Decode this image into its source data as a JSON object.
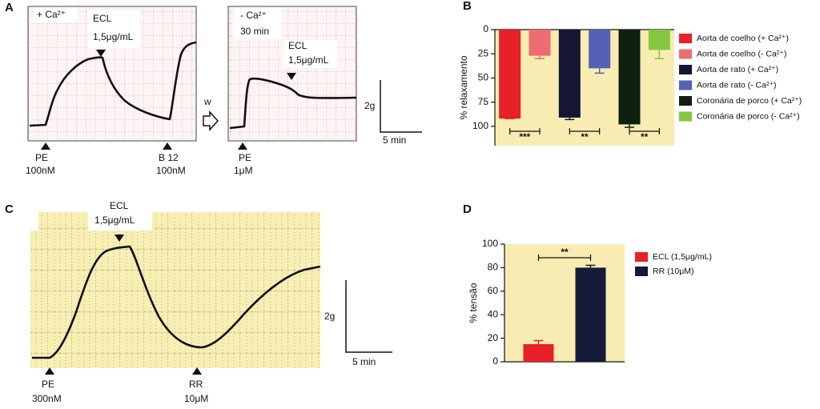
{
  "panels": {
    "A": {
      "label": "A",
      "left_condition": "+ Ca²⁺",
      "ecl": "ECL",
      "ecl_dose": "1,5μg/mL",
      "pe": "PE",
      "pe_dose": "100nM",
      "b12": "B 12",
      "b12_dose": "100nM",
      "wash": "w",
      "right_condition": "- Ca²⁺",
      "right_time": "30 min",
      "ecl2": "ECL",
      "ecl2_dose": "1,5μg/mL",
      "pe2": "PE",
      "pe2_dose": "1μM",
      "scale_y": "2g",
      "scale_x": "5 min"
    },
    "C": {
      "label": "C",
      "ecl": "ECL",
      "ecl_dose": "1,5μg/mL",
      "pe": "PE",
      "pe_dose": "300nM",
      "rr": "RR",
      "rr_dose": "10μM",
      "scale_y": "2g",
      "scale_x": "5 min"
    }
  },
  "chart_data": [
    {
      "type": "bar",
      "label": "B",
      "ylabel": "% relaxamento",
      "inverted": true,
      "ylim": [
        0,
        120
      ],
      "yticks": [
        0,
        25,
        50,
        75,
        100
      ],
      "background": "#f8ecb2",
      "legend": "right",
      "categories": [
        null
      ],
      "series": [
        {
          "name": "Aorta de coelho (+ Ca²⁺)",
          "color": "#e8202a",
          "values": [
            92
          ],
          "errors": [
            0
          ]
        },
        {
          "name": "Aorta de coelho (- Ca²⁺)",
          "color": "#ef6b73",
          "values": [
            27
          ],
          "errors": [
            3
          ]
        },
        {
          "name": "Aorta de rato (+ Ca²⁺)",
          "color": "#141633",
          "values": [
            91
          ],
          "errors": [
            2
          ]
        },
        {
          "name": "Aorta de rato (- Ca²⁺)",
          "color": "#5661b5",
          "values": [
            40
          ],
          "errors": [
            5
          ]
        },
        {
          "name": "Coronária de porco (+ Ca²⁺)",
          "color": "#0e1f10",
          "values": [
            98
          ],
          "errors": [
            3
          ]
        },
        {
          "name": "Coronária de porco (- Ca²⁺)",
          "color": "#86c540",
          "values": [
            21
          ],
          "errors": [
            9
          ]
        }
      ],
      "annotations": [
        "***",
        "**",
        "**"
      ]
    },
    {
      "type": "bar",
      "label": "D",
      "ylabel": "% tensão",
      "inverted": false,
      "ylim": [
        0,
        100
      ],
      "yticks": [
        0,
        20,
        40,
        60,
        80,
        100
      ],
      "background": "#f8ecb2",
      "legend": "right",
      "categories": [
        null
      ],
      "series": [
        {
          "name": "ECL (1,5μg/mL)",
          "color": "#e8202a",
          "values": [
            15
          ],
          "errors": [
            3
          ]
        },
        {
          "name": "RR (10μM)",
          "color": "#151a3a",
          "values": [
            80
          ],
          "errors": [
            2
          ]
        }
      ],
      "annotations": [
        "**"
      ]
    }
  ]
}
